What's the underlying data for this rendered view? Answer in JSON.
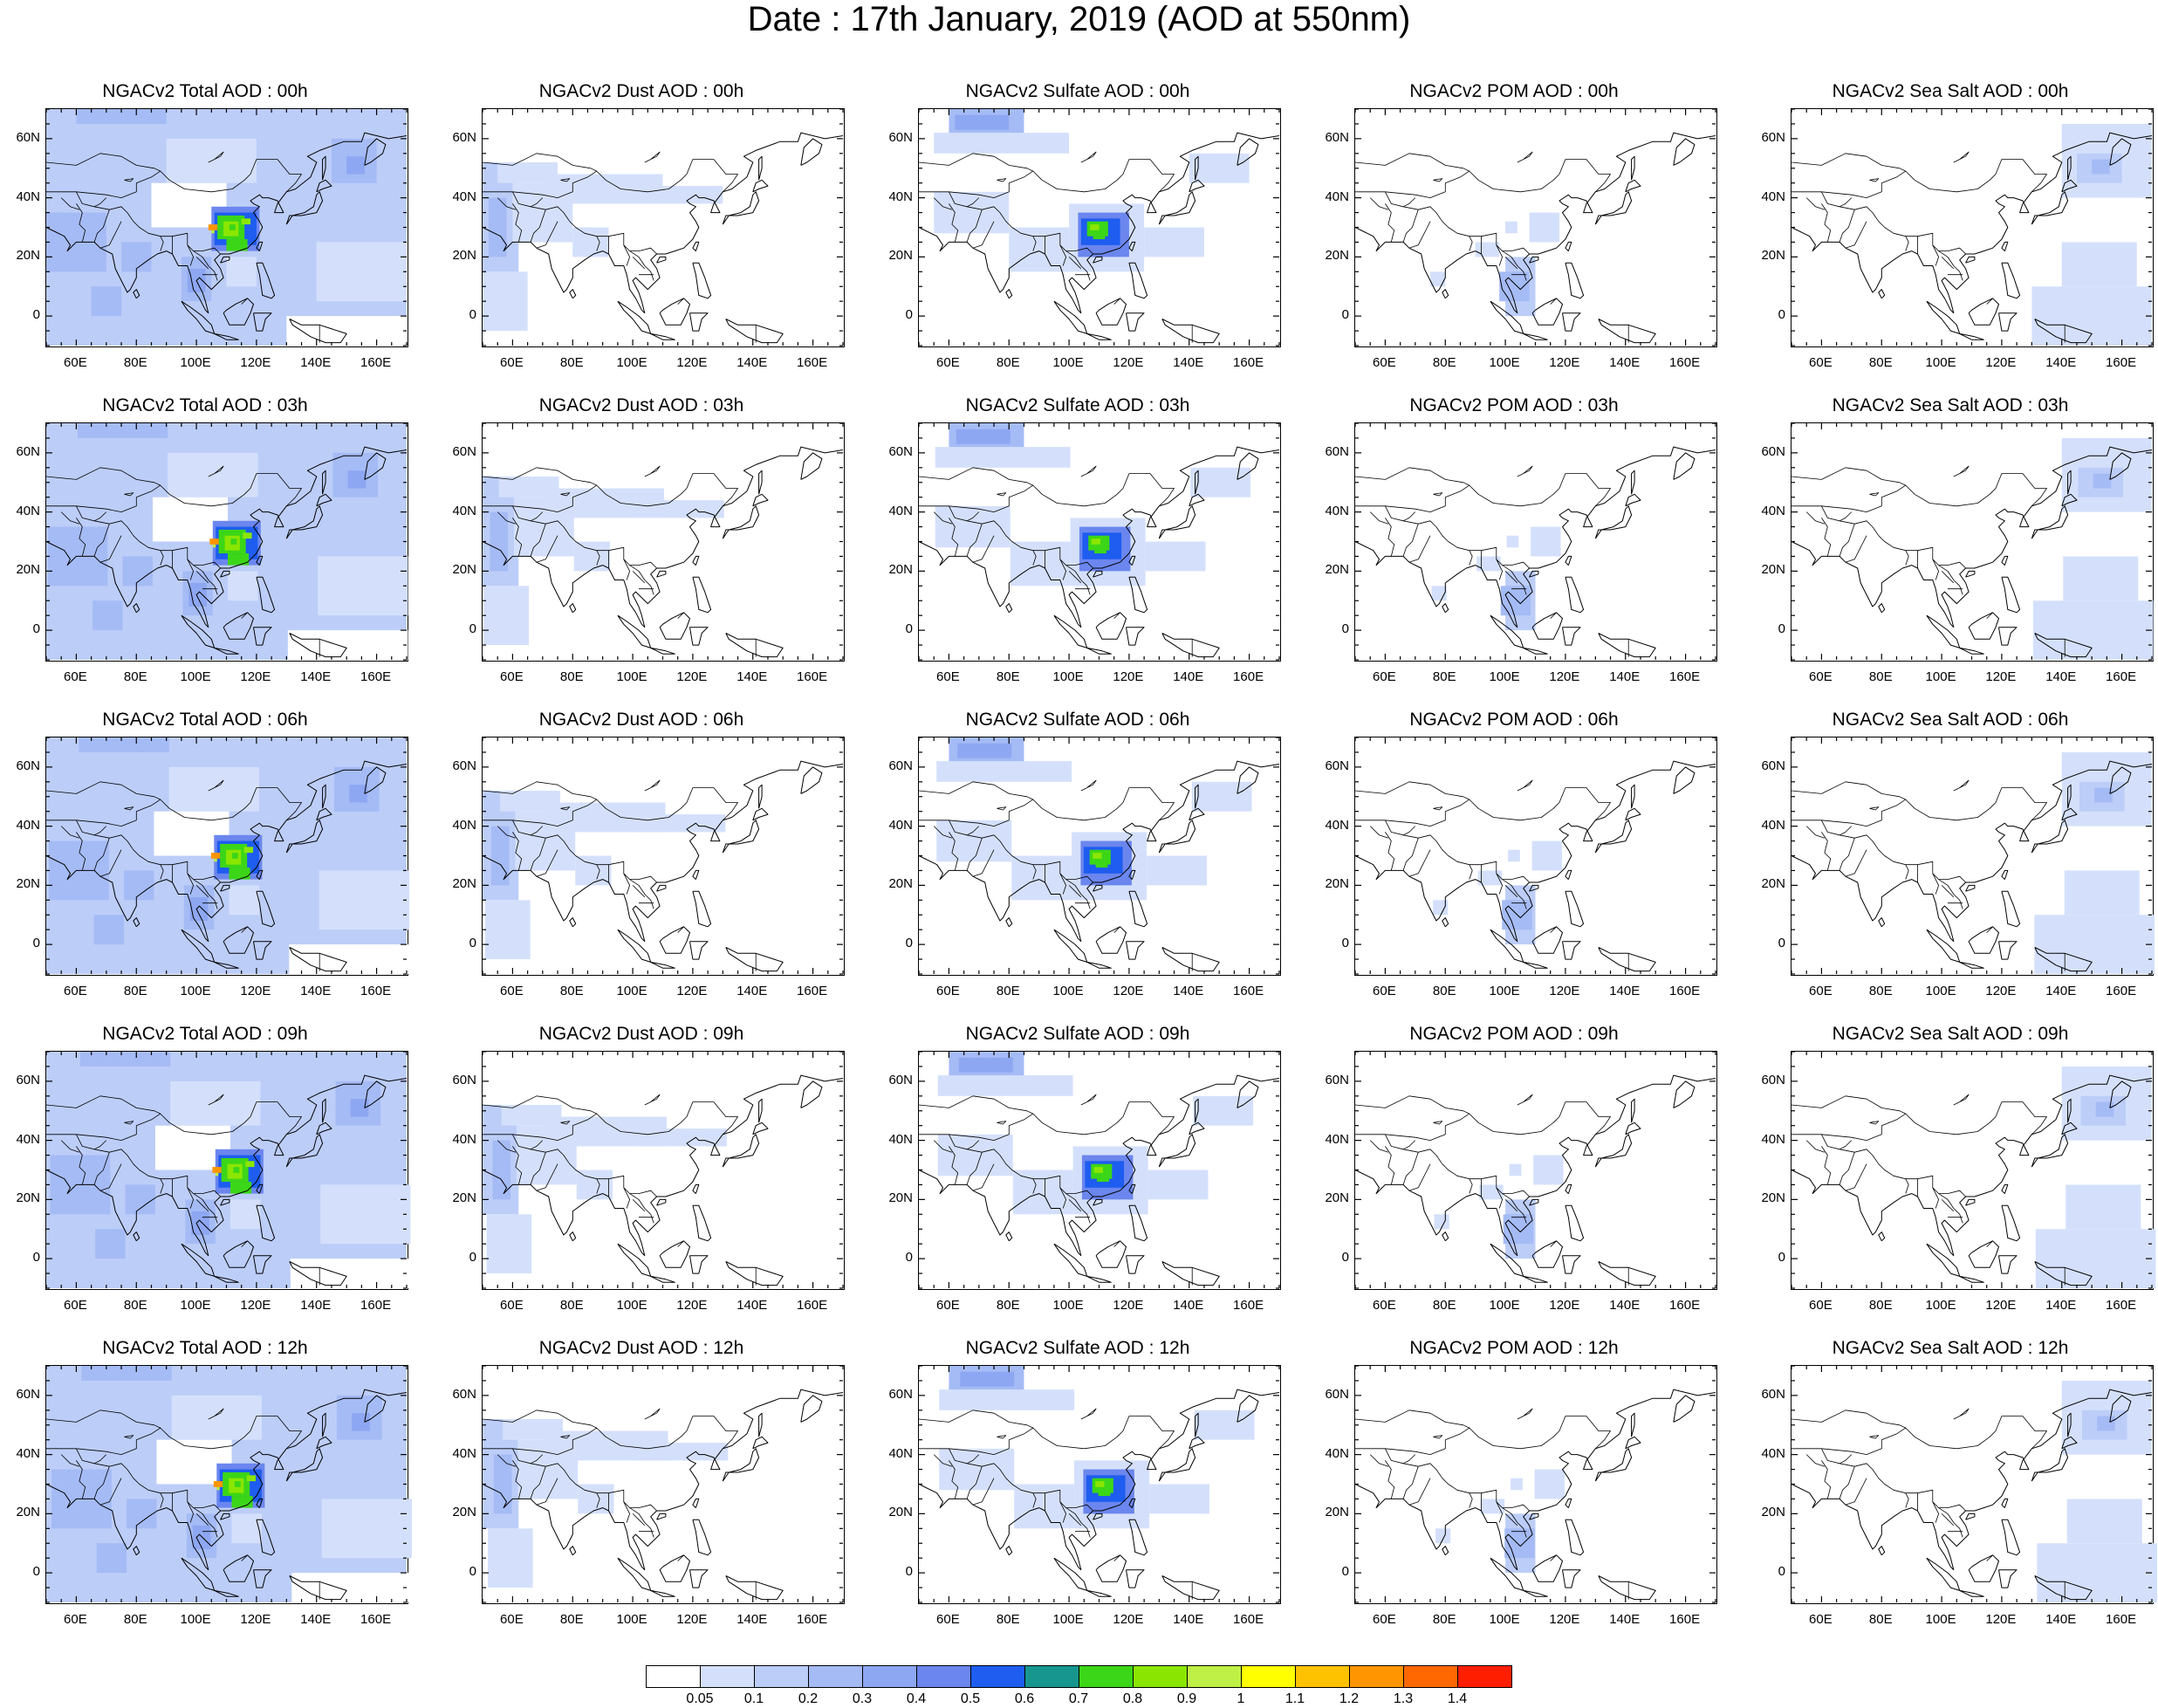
{
  "title": "Date : 17th January, 2019 (AOD at 550nm)",
  "axes": {
    "lat_labels": [
      "60N",
      "40N",
      "20N",
      "0"
    ],
    "lon_labels": [
      "60E",
      "80E",
      "100E",
      "120E",
      "140E",
      "160E"
    ],
    "lat_values": [
      60,
      40,
      20,
      0
    ],
    "lon_values": [
      60,
      80,
      100,
      120,
      140,
      160
    ],
    "lon_range": [
      50,
      170
    ],
    "lat_range": [
      -10,
      70
    ]
  },
  "rows": [
    {
      "hour": "00h",
      "titles": [
        "NGACv2 Total AOD : 00h",
        "NGACv2 Dust AOD : 00h",
        "NGACv2 Sulfate AOD : 00h",
        "NGACv2 POM AOD : 00h",
        "NGACv2 Sea Salt AOD : 00h"
      ]
    },
    {
      "hour": "03h",
      "titles": [
        "NGACv2 Total AOD : 03h",
        "NGACv2 Dust AOD : 03h",
        "NGACv2 Sulfate AOD : 03h",
        "NGACv2 POM AOD : 03h",
        "NGACv2 Sea Salt AOD : 03h"
      ]
    },
    {
      "hour": "06h",
      "titles": [
        "NGACv2 Total AOD : 06h",
        "NGACv2 Dust AOD : 06h",
        "NGACv2 Sulfate AOD : 06h",
        "NGACv2 POM AOD : 06h",
        "NGACv2 Sea Salt AOD : 06h"
      ]
    },
    {
      "hour": "09h",
      "titles": [
        "NGACv2 Total AOD : 09h",
        "NGACv2 Dust AOD : 09h",
        "NGACv2 Sulfate AOD : 09h",
        "NGACv2 POM AOD : 09h",
        "NGACv2 Sea Salt  AOD : 09h"
      ]
    },
    {
      "hour": "12h",
      "titles": [
        "NGACv2 Total AOD  : 12h",
        "NGACv2 Dust AOD : 12h",
        "NGACv2 Sulfate AOD : 12h",
        "NGACv2 POM  AOD : 12h",
        "NGACv2 Sea Salt  AOD : 12h"
      ]
    }
  ],
  "colorbar": {
    "labels": [
      "0.05",
      "0.1",
      "0.2",
      "0.3",
      "0.4",
      "0.5",
      "0.6",
      "0.7",
      "0.8",
      "0.9",
      "1",
      "1.1",
      "1.2",
      "1.3",
      "1.4"
    ],
    "colors": [
      "#ffffff",
      "#d4e0fb",
      "#bccdf8",
      "#a5bbf5",
      "#8ea7f2",
      "#6b86ee",
      "#1e5df0",
      "#17968f",
      "#3cd618",
      "#8ae600",
      "#bff045",
      "#ffff00",
      "#ffc200",
      "#ff9500",
      "#ff6800",
      "#ff1e00"
    ]
  }
}
